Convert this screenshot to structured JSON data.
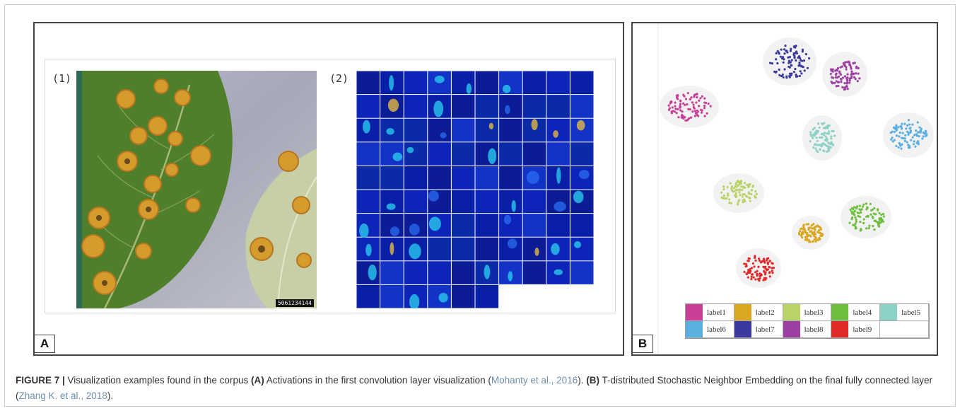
{
  "figure": {
    "panel_a": {
      "letter": "A",
      "sublabel_1": "(1)",
      "sublabel_2": "(2)",
      "photo_stamp": "5061234144"
    },
    "panel_b": {
      "letter": "B",
      "legend": [
        {
          "label": "label1",
          "color": "#c93f97"
        },
        {
          "label": "label2",
          "color": "#d9a820"
        },
        {
          "label": "label3",
          "color": "#b8d368"
        },
        {
          "label": "label4",
          "color": "#6fbe3f"
        },
        {
          "label": "label5",
          "color": "#8ed1c6"
        },
        {
          "label": "label6",
          "color": "#5aaee0"
        },
        {
          "label": "label7",
          "color": "#3a3a9e"
        },
        {
          "label": "label8",
          "color": "#9d3fa3"
        },
        {
          "label": "label9",
          "color": "#e02a2a"
        },
        {
          "label": "",
          "color": "#ffffff"
        }
      ]
    },
    "caption": {
      "figure_label": "FIGURE 7 |",
      "intro": " Visualization examples found in the corpus ",
      "a_label": "(A)",
      "a_text": " Activations in the first convolution layer visualization (",
      "a_cite": "Mohanty et al., 2016",
      "a_end": "). ",
      "b_label": "(B)",
      "b_text": " T-distributed Stochastic Neighbor Embedding on the final fully connected layer (",
      "b_cite": "Zhang K. et al., 2018",
      "b_end": ")."
    }
  }
}
